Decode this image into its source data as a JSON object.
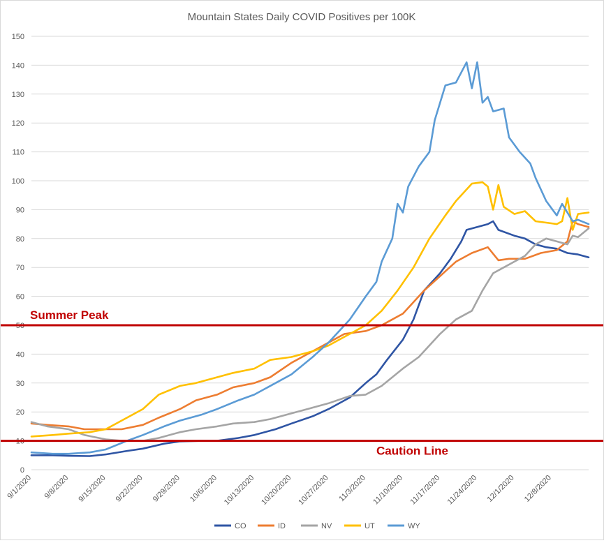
{
  "chart_data": {
    "type": "line",
    "title": "Mountain States Daily COVID Positives per 100K",
    "xlabel": "",
    "ylabel": "",
    "ylim": [
      0,
      150
    ],
    "yticks": [
      0,
      10,
      20,
      30,
      40,
      50,
      60,
      70,
      80,
      90,
      100,
      110,
      120,
      130,
      140,
      150
    ],
    "x_start": "2020-09-01",
    "x_end": "2020-12-15",
    "x_tick_labels": [
      "9/1/2020",
      "9/8/2020",
      "9/15/2020",
      "9/22/2020",
      "9/29/2020",
      "10/6/2020",
      "10/13/2020",
      "10/20/2020",
      "10/27/2020",
      "11/3/2020",
      "11/10/2020",
      "11/17/2020",
      "11/24/2020",
      "12/1/2020",
      "12/8/2020"
    ],
    "grid": true,
    "legend_position": "bottom",
    "series": [
      {
        "name": "CO",
        "color": "#2F55A4",
        "points": [
          [
            "2020-09-01",
            5.0
          ],
          [
            "2020-09-05",
            5.0
          ],
          [
            "2020-09-08",
            4.8
          ],
          [
            "2020-09-12",
            4.7
          ],
          [
            "2020-09-15",
            5.3
          ],
          [
            "2020-09-19",
            6.5
          ],
          [
            "2020-09-22",
            7.3
          ],
          [
            "2020-09-26",
            9.0
          ],
          [
            "2020-09-29",
            9.8
          ],
          [
            "2020-10-03",
            10.0
          ],
          [
            "2020-10-06",
            10.0
          ],
          [
            "2020-10-10",
            11.0
          ],
          [
            "2020-10-13",
            12.0
          ],
          [
            "2020-10-17",
            14.0
          ],
          [
            "2020-10-20",
            16.0
          ],
          [
            "2020-10-24",
            18.5
          ],
          [
            "2020-10-27",
            21.0
          ],
          [
            "2020-10-31",
            25.0
          ],
          [
            "2020-11-03",
            30.0
          ],
          [
            "2020-11-05",
            33.0
          ],
          [
            "2020-11-07",
            38.0
          ],
          [
            "2020-11-10",
            45.0
          ],
          [
            "2020-11-12",
            52.0
          ],
          [
            "2020-11-14",
            62.0
          ],
          [
            "2020-11-17",
            68.0
          ],
          [
            "2020-11-19",
            73.0
          ],
          [
            "2020-11-21",
            79.0
          ],
          [
            "2020-11-22",
            83.0
          ],
          [
            "2020-11-24",
            84.0
          ],
          [
            "2020-11-26",
            85.0
          ],
          [
            "2020-11-27",
            86.0
          ],
          [
            "2020-11-28",
            83.0
          ],
          [
            "2020-12-01",
            81.0
          ],
          [
            "2020-12-03",
            80.0
          ],
          [
            "2020-12-05",
            78.0
          ],
          [
            "2020-12-07",
            77.0
          ],
          [
            "2020-12-09",
            76.5
          ],
          [
            "2020-12-11",
            75.0
          ],
          [
            "2020-12-13",
            74.5
          ],
          [
            "2020-12-15",
            73.5
          ]
        ]
      },
      {
        "name": "ID",
        "color": "#ED7D31",
        "points": [
          [
            "2020-09-01",
            16.0
          ],
          [
            "2020-09-04",
            15.5
          ],
          [
            "2020-09-08",
            15.0
          ],
          [
            "2020-09-11",
            14.0
          ],
          [
            "2020-09-15",
            14.0
          ],
          [
            "2020-09-18",
            14.0
          ],
          [
            "2020-09-22",
            15.5
          ],
          [
            "2020-09-25",
            18.0
          ],
          [
            "2020-09-29",
            21.0
          ],
          [
            "2020-10-02",
            24.0
          ],
          [
            "2020-10-06",
            26.0
          ],
          [
            "2020-10-09",
            28.5
          ],
          [
            "2020-10-13",
            30.0
          ],
          [
            "2020-10-16",
            32.0
          ],
          [
            "2020-10-20",
            37.0
          ],
          [
            "2020-10-23",
            40.0
          ],
          [
            "2020-10-27",
            44.0
          ],
          [
            "2020-10-30",
            47.0
          ],
          [
            "2020-11-03",
            48.0
          ],
          [
            "2020-11-06",
            50.0
          ],
          [
            "2020-11-08",
            52.0
          ],
          [
            "2020-11-10",
            54.0
          ],
          [
            "2020-11-12",
            58.0
          ],
          [
            "2020-11-14",
            62.0
          ],
          [
            "2020-11-17",
            67.0
          ],
          [
            "2020-11-20",
            72.0
          ],
          [
            "2020-11-23",
            75.0
          ],
          [
            "2020-11-26",
            77.0
          ],
          [
            "2020-11-28",
            72.5
          ],
          [
            "2020-11-30",
            73.0
          ],
          [
            "2020-12-03",
            73.0
          ],
          [
            "2020-12-06",
            75.0
          ],
          [
            "2020-12-09",
            76.0
          ],
          [
            "2020-12-11",
            79.0
          ],
          [
            "2020-12-12",
            86.0
          ],
          [
            "2020-12-13",
            85.0
          ],
          [
            "2020-12-15",
            84.0
          ]
        ]
      },
      {
        "name": "NV",
        "color": "#A5A5A5",
        "points": [
          [
            "2020-09-01",
            16.5
          ],
          [
            "2020-09-04",
            15.0
          ],
          [
            "2020-09-08",
            14.0
          ],
          [
            "2020-09-11",
            12.0
          ],
          [
            "2020-09-15",
            10.5
          ],
          [
            "2020-09-18",
            10.0
          ],
          [
            "2020-09-22",
            10.0
          ],
          [
            "2020-09-25",
            11.0
          ],
          [
            "2020-09-29",
            13.0
          ],
          [
            "2020-10-02",
            14.0
          ],
          [
            "2020-10-06",
            15.0
          ],
          [
            "2020-10-09",
            16.0
          ],
          [
            "2020-10-13",
            16.5
          ],
          [
            "2020-10-16",
            17.5
          ],
          [
            "2020-10-20",
            19.5
          ],
          [
            "2020-10-23",
            21.0
          ],
          [
            "2020-10-27",
            23.0
          ],
          [
            "2020-10-31",
            25.5
          ],
          [
            "2020-11-03",
            26.0
          ],
          [
            "2020-11-06",
            29.0
          ],
          [
            "2020-11-10",
            35.0
          ],
          [
            "2020-11-13",
            39.0
          ],
          [
            "2020-11-17",
            47.0
          ],
          [
            "2020-11-20",
            52.0
          ],
          [
            "2020-11-23",
            55.0
          ],
          [
            "2020-11-25",
            62.0
          ],
          [
            "2020-11-27",
            68.0
          ],
          [
            "2020-11-29",
            70.0
          ],
          [
            "2020-12-01",
            72.0
          ],
          [
            "2020-12-03",
            74.0
          ],
          [
            "2020-12-05",
            78.0
          ],
          [
            "2020-12-07",
            80.0
          ],
          [
            "2020-12-09",
            79.0
          ],
          [
            "2020-12-11",
            78.0
          ],
          [
            "2020-12-12",
            81.0
          ],
          [
            "2020-12-13",
            80.5
          ],
          [
            "2020-12-15",
            83.5
          ]
        ]
      },
      {
        "name": "UT",
        "color": "#FFC000",
        "points": [
          [
            "2020-09-01",
            11.5
          ],
          [
            "2020-09-05",
            12.0
          ],
          [
            "2020-09-08",
            12.5
          ],
          [
            "2020-09-12",
            13.0
          ],
          [
            "2020-09-15",
            14.0
          ],
          [
            "2020-09-18",
            17.0
          ],
          [
            "2020-09-22",
            21.0
          ],
          [
            "2020-09-25",
            26.0
          ],
          [
            "2020-09-29",
            29.0
          ],
          [
            "2020-10-02",
            30.0
          ],
          [
            "2020-10-06",
            32.0
          ],
          [
            "2020-10-09",
            33.5
          ],
          [
            "2020-10-13",
            35.0
          ],
          [
            "2020-10-16",
            38.0
          ],
          [
            "2020-10-20",
            39.0
          ],
          [
            "2020-10-24",
            41.0
          ],
          [
            "2020-10-27",
            43.0
          ],
          [
            "2020-10-31",
            47.0
          ],
          [
            "2020-11-03",
            50.0
          ],
          [
            "2020-11-06",
            55.0
          ],
          [
            "2020-11-09",
            62.0
          ],
          [
            "2020-11-12",
            70.0
          ],
          [
            "2020-11-15",
            80.0
          ],
          [
            "2020-11-18",
            88.0
          ],
          [
            "2020-11-20",
            93.0
          ],
          [
            "2020-11-23",
            99.0
          ],
          [
            "2020-11-25",
            99.5
          ],
          [
            "2020-11-26",
            98.0
          ],
          [
            "2020-11-27",
            90.0
          ],
          [
            "2020-11-28",
            98.5
          ],
          [
            "2020-11-29",
            91.0
          ],
          [
            "2020-12-01",
            88.5
          ],
          [
            "2020-12-03",
            89.5
          ],
          [
            "2020-12-05",
            86.0
          ],
          [
            "2020-12-07",
            85.5
          ],
          [
            "2020-12-09",
            85.0
          ],
          [
            "2020-12-10",
            86.0
          ],
          [
            "2020-12-11",
            94.0
          ],
          [
            "2020-12-12",
            83.0
          ],
          [
            "2020-12-13",
            88.5
          ],
          [
            "2020-12-15",
            89.0
          ]
        ]
      },
      {
        "name": "WY",
        "color": "#5B9BD5",
        "points": [
          [
            "2020-09-01",
            6.0
          ],
          [
            "2020-09-05",
            5.5
          ],
          [
            "2020-09-08",
            5.5
          ],
          [
            "2020-09-12",
            6.0
          ],
          [
            "2020-09-15",
            7.0
          ],
          [
            "2020-09-19",
            10.0
          ],
          [
            "2020-09-22",
            12.0
          ],
          [
            "2020-09-26",
            15.0
          ],
          [
            "2020-09-29",
            17.0
          ],
          [
            "2020-10-03",
            19.0
          ],
          [
            "2020-10-06",
            21.0
          ],
          [
            "2020-10-10",
            24.0
          ],
          [
            "2020-10-13",
            26.0
          ],
          [
            "2020-10-17",
            30.0
          ],
          [
            "2020-10-20",
            33.0
          ],
          [
            "2020-10-24",
            39.0
          ],
          [
            "2020-10-27",
            44.0
          ],
          [
            "2020-10-31",
            52.0
          ],
          [
            "2020-11-03",
            60.0
          ],
          [
            "2020-11-05",
            65.0
          ],
          [
            "2020-11-06",
            72.0
          ],
          [
            "2020-11-08",
            80.0
          ],
          [
            "2020-11-09",
            92.0
          ],
          [
            "2020-11-10",
            89.0
          ],
          [
            "2020-11-11",
            98.0
          ],
          [
            "2020-11-13",
            105.0
          ],
          [
            "2020-11-15",
            110.0
          ],
          [
            "2020-11-16",
            121.0
          ],
          [
            "2020-11-18",
            133.0
          ],
          [
            "2020-11-20",
            134.0
          ],
          [
            "2020-11-22",
            141.0
          ],
          [
            "2020-11-23",
            132.0
          ],
          [
            "2020-11-24",
            141.0
          ],
          [
            "2020-11-25",
            127.0
          ],
          [
            "2020-11-26",
            129.0
          ],
          [
            "2020-11-27",
            124.0
          ],
          [
            "2020-11-29",
            125.0
          ],
          [
            "2020-11-30",
            115.0
          ],
          [
            "2020-12-02",
            110.0
          ],
          [
            "2020-12-04",
            106.0
          ],
          [
            "2020-12-05",
            101.0
          ],
          [
            "2020-12-07",
            93.0
          ],
          [
            "2020-12-09",
            88.0
          ],
          [
            "2020-12-10",
            92.0
          ],
          [
            "2020-12-12",
            86.0
          ],
          [
            "2020-12-13",
            86.5
          ],
          [
            "2020-12-15",
            85.0
          ]
        ]
      }
    ],
    "reference_lines": [
      {
        "label": "Summer Peak",
        "y": 50,
        "color": "#C00000"
      },
      {
        "label": "Caution Line",
        "y": 10,
        "color": "#C00000"
      }
    ]
  }
}
